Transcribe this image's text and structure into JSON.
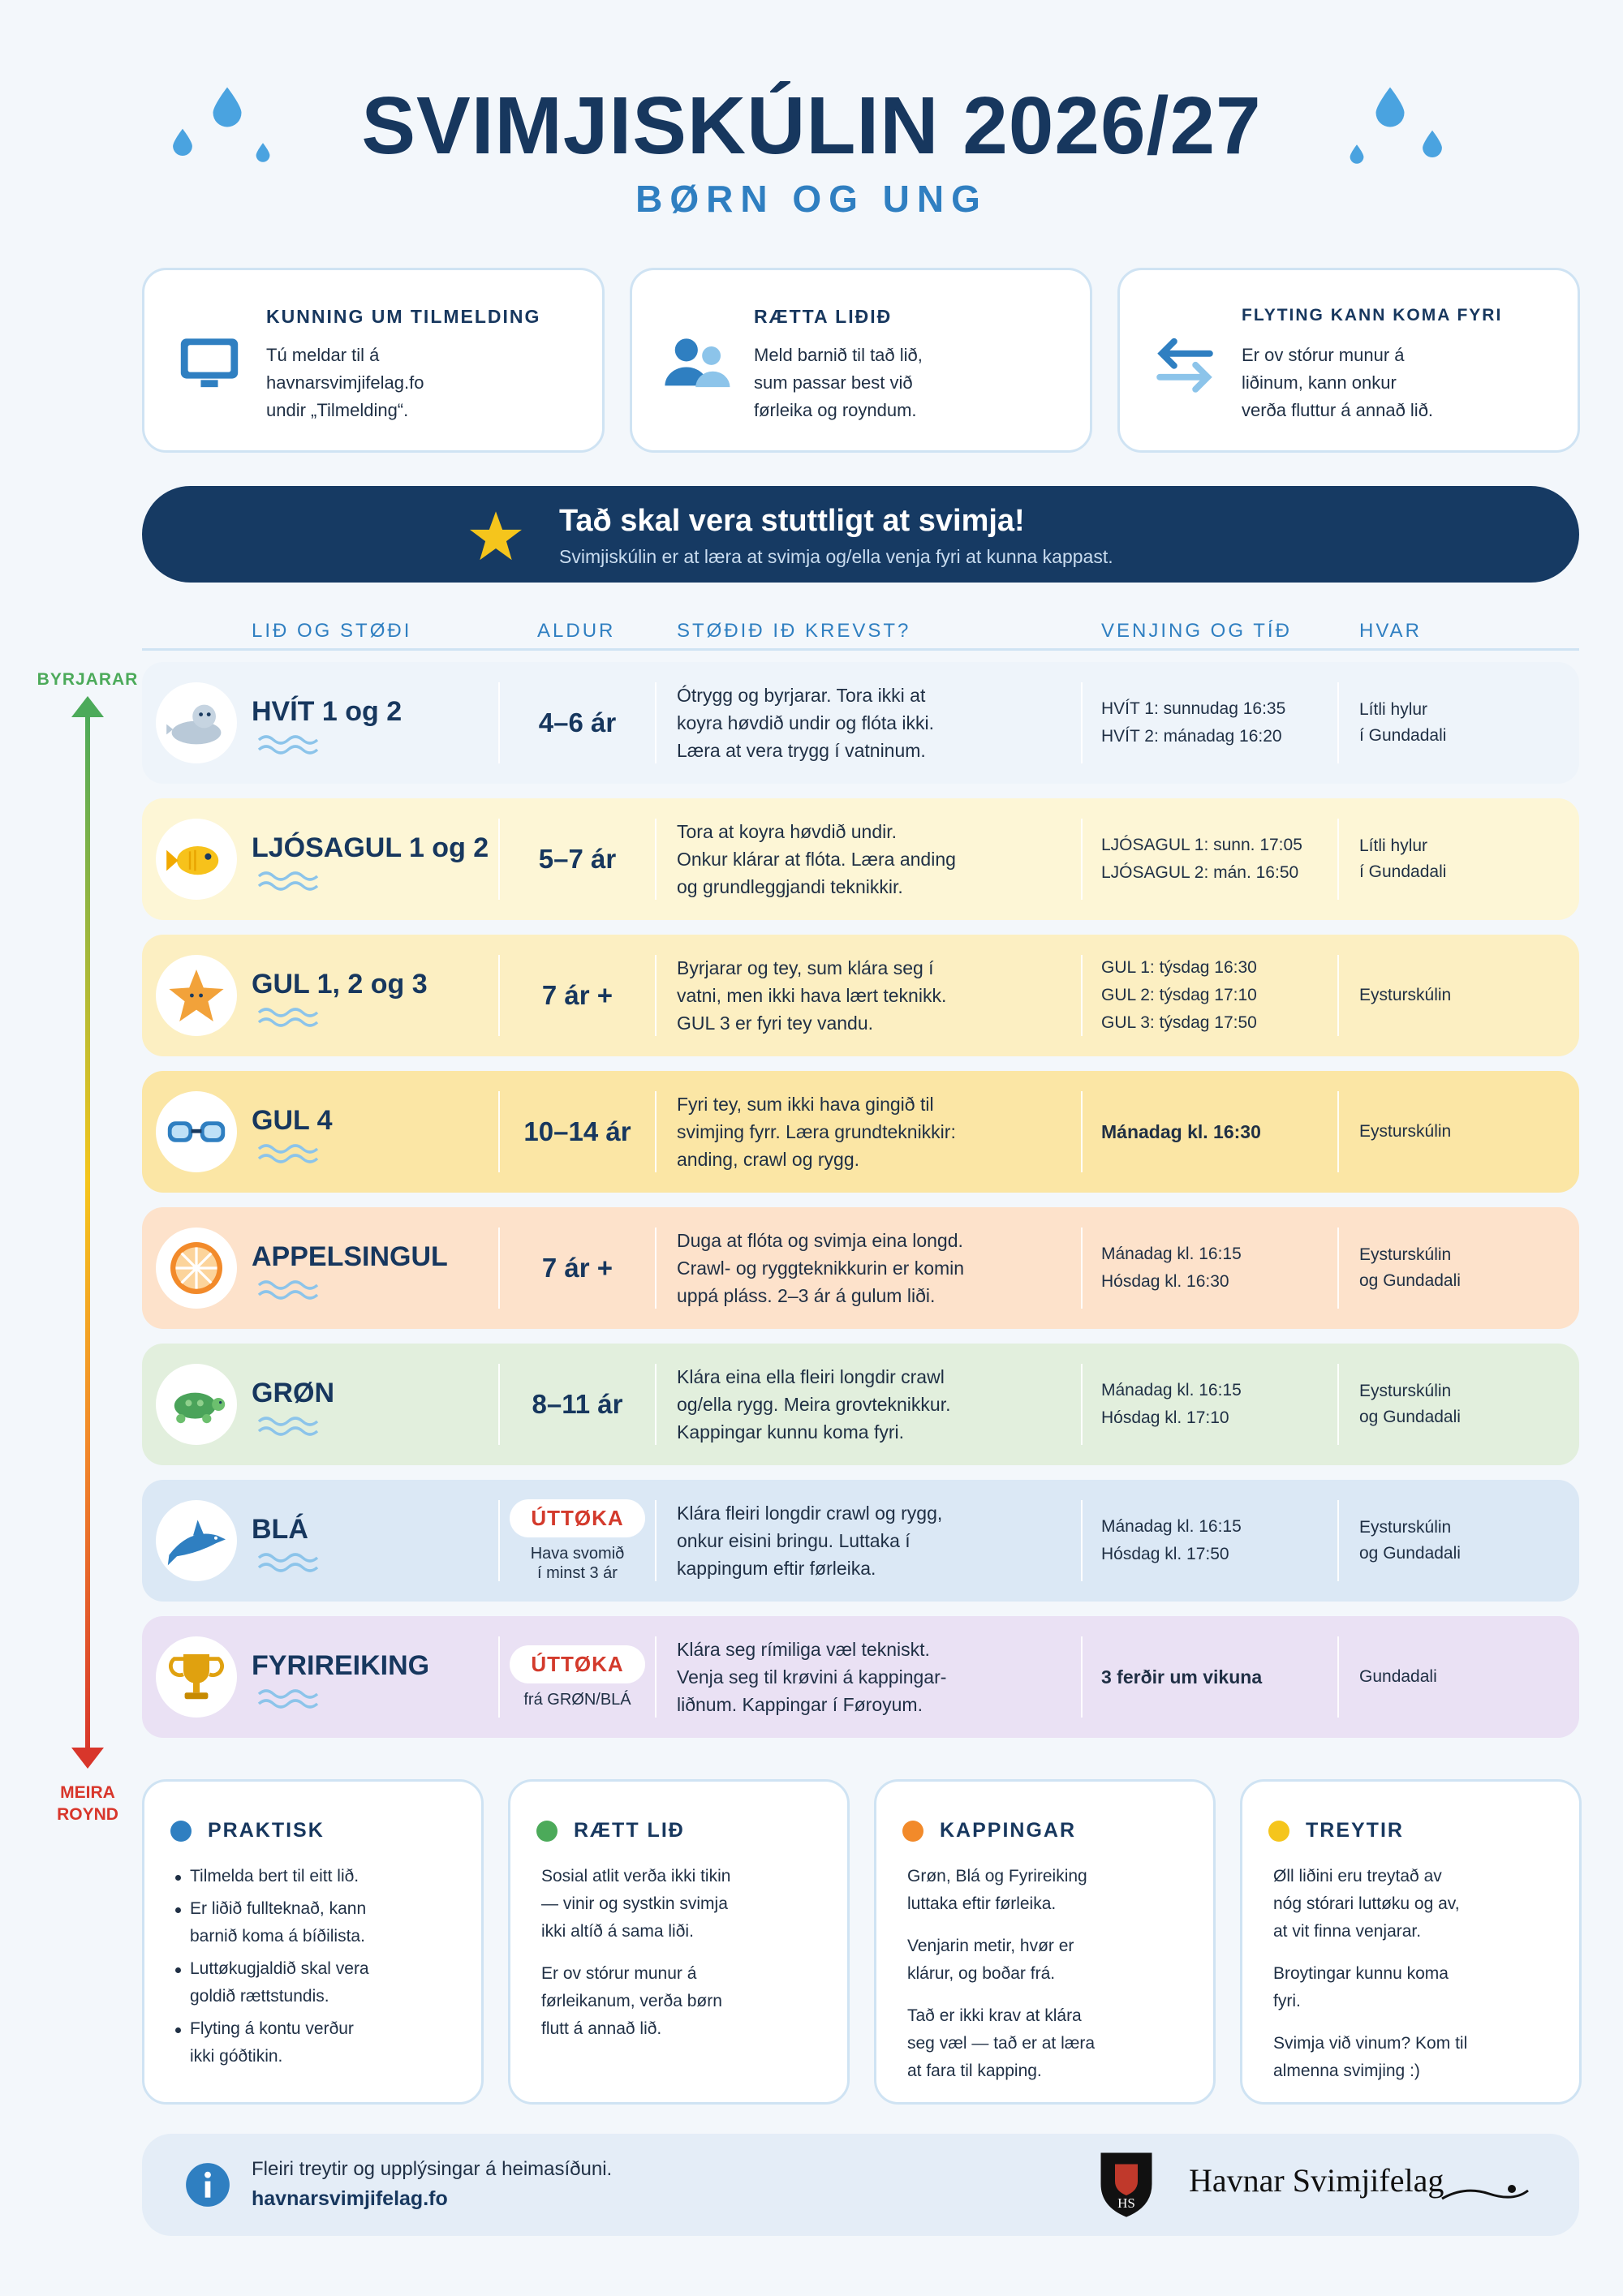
{
  "header": {
    "title": "SVIMJISKÚLIN 2026/27",
    "subtitle": "BØRN OG UNG"
  },
  "info_cards": [
    {
      "title": "KUNNING UM TILMELDING",
      "lines": [
        "Tú meldar til á",
        "havnarsvimjifelag.fo",
        "undir „Tilmelding“."
      ]
    },
    {
      "title": "RÆTTA LIÐIÐ",
      "lines": [
        "Meld barnið til tað lið,",
        "sum passar best við",
        "førleika og royndum."
      ]
    },
    {
      "title": "FLYTING KANN KOMA FYRI",
      "lines": [
        "Er ov stórur munur á",
        "liðinum, kann onkur",
        "verða fluttur á annað lið."
      ]
    }
  ],
  "banner": {
    "title": "Tað skal vera stuttligt at svimja!",
    "text": "Svimjiskúlin er at læra at svimja og/ella venja fyri at kunna kappast."
  },
  "table": {
    "headers": [
      "LIÐ OG STØÐI",
      "ALDUR",
      "STØÐIÐ IÐ KREVST?",
      "VENJING OG TÍÐ",
      "HVAR"
    ],
    "rows": [
      {
        "group": "HVÍT 1 og 2",
        "age": "4–6 ár",
        "requirements": [
          "Ótrygg og byrjarar. Tora ikki at",
          "koyra høvdið undir og flóta ikki.",
          "Læra at vera trygg í vatninum."
        ],
        "schedule": [
          "HVÍT 1: sunnudag 16:35",
          "HVÍT 2: mánadag 16:20"
        ],
        "location": [
          "Lítli hylur",
          "í Gundadali"
        ]
      },
      {
        "group": "LJÓSAGUL 1 og 2",
        "age": "5–7 ár",
        "requirements": [
          "Tora at koyra høvdið undir.",
          "Onkur klárar at flóta. Læra anding",
          "og grundleggjandi teknikkir."
        ],
        "schedule": [
          "LJÓSAGUL 1: sunn. 17:05",
          "LJÓSAGUL 2: mán. 16:50"
        ],
        "location": [
          "Lítli hylur",
          "í Gundadali"
        ]
      },
      {
        "group": "GUL 1, 2 og 3",
        "age": "7 ár +",
        "requirements": [
          "Byrjarar og tey, sum klára seg í",
          "vatni, men ikki hava lært teknikk.",
          "GUL 3 er fyri tey vandu."
        ],
        "schedule": [
          "GUL 1: týsdag 16:30",
          "GUL 2: týsdag 17:10",
          "GUL 3: týsdag 17:50"
        ],
        "location": [
          "Eysturskúlin"
        ]
      },
      {
        "group": "GUL 4",
        "age": "10–14 ár",
        "requirements": [
          "Fyri tey, sum ikki hava gingið til",
          "svimjing fyrr. Læra grundteknikkir:",
          "anding, crawl og rygg."
        ],
        "schedule": [
          "Mánadag kl. 16:30"
        ],
        "location": [
          "Eysturskúlin"
        ]
      },
      {
        "group": "APPELSINGUL",
        "age": "7 ár +",
        "requirements": [
          "Duga at flóta og svimja eina longd.",
          "Crawl- og ryggteknikkurin er komin",
          "uppá pláss. 2–3 ár á gulum liði."
        ],
        "schedule": [
          "Mánadag kl. 16:15",
          "Hósdag kl. 16:30"
        ],
        "location": [
          "Eysturskúlin",
          "og Gundadali"
        ]
      },
      {
        "group": "GRØN",
        "age": "8–11 ár",
        "requirements": [
          "Klára eina ella fleiri longdir crawl",
          "og/ella rygg. Meira grovteknikkur.",
          "Kappingar kunnu koma fyri."
        ],
        "schedule": [
          "Mánadag kl. 16:15",
          "Hósdag kl. 17:10"
        ],
        "location": [
          "Eysturskúlin",
          "og Gundadali"
        ]
      },
      {
        "group": "BLÁ",
        "age": "ÚTTØKA",
        "age_note": [
          "Hava svomið",
          "í minst 3 ár"
        ],
        "requirements": [
          "Klára fleiri longdir crawl og rygg,",
          "onkur eisini bringu. Luttaka í",
          "kappingum eftir førleika."
        ],
        "schedule": [
          "Mánadag kl. 16:15",
          "Hósdag kl. 17:50"
        ],
        "location": [
          "Eysturskúlin",
          "og Gundadali"
        ]
      },
      {
        "group": "FYRIREIKING",
        "age": "ÚTTØKA",
        "age_note": [
          "frá GRØN/BLÁ"
        ],
        "requirements": [
          "Klára seg rímiliga væl tekniskt.",
          "Venja seg til krøvini á kappingar-",
          "liðnum. Kappingar í Føroyum."
        ],
        "schedule": [
          "3 ferðir um vikuna"
        ],
        "location": [
          "Gundadali"
        ]
      }
    ]
  },
  "scale": {
    "top": "BYRJARAR",
    "bottom": [
      "MEIRA",
      "ROYND"
    ]
  },
  "notes": [
    {
      "title": "PRAKTISK",
      "bullets": [
        [
          "Tilmelda bert til eitt lið."
        ],
        [
          "Er liðið fullteknað, kann",
          "barnið koma á bíðilista."
        ],
        [
          "Luttøkugjaldið skal vera",
          "goldið rættstundis."
        ],
        [
          "Flyting á kontu verður",
          "ikki góðtikin."
        ]
      ]
    },
    {
      "title": "RÆTT LIÐ",
      "paragraphs": [
        [
          "Sosial atlit verða ikki tikin",
          "— vinir og systkin svimja",
          "ikki altíð á sama liði."
        ],
        [
          "Er ov stórur munur á",
          "førleikanum, verða børn",
          "flutt á annað lið."
        ]
      ]
    },
    {
      "title": "KAPPINGAR",
      "paragraphs": [
        [
          "Grøn, Blá og Fyrireiking",
          "luttaka eftir førleika."
        ],
        [
          "Venjarin metir, hvør er",
          "klárur, og boðar frá."
        ],
        [
          "Tað er ikki krav at klára",
          "seg væl — tað er at læra",
          "at fara til kapping."
        ]
      ]
    },
    {
      "title": "TREYTIR",
      "paragraphs": [
        [
          "Øll liðini eru treytað av",
          "nóg stórari luttøku og av,",
          "at vit finna venjarar."
        ],
        [
          "Broytingar kunnu koma",
          "fyri."
        ],
        [
          "Svimja við vinum? Kom til",
          "almenna svimjing :)"
        ]
      ]
    }
  ],
  "footer": {
    "lines": [
      "Fleiri treytir og upplýsingar á heimasíðuni.",
      "havnarsvimjifelag.fo"
    ],
    "badge": "HS",
    "logo": "Havnar Svimjifelag"
  }
}
